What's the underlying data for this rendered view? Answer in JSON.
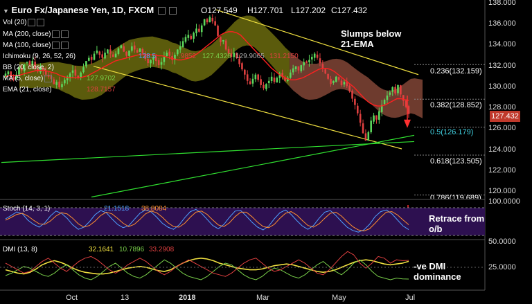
{
  "header": {
    "symbol_line": "Euro Fx/Japanese Yen, 1D, FXCM",
    "open": "O127.549",
    "high": "H127.701",
    "low": "L127.202",
    "close": "C127.432"
  },
  "indicators": [
    {
      "label": "Vol (20)",
      "values": []
    },
    {
      "label": "MA (200, close)",
      "values": []
    },
    {
      "label": "MA (100, close)",
      "values": []
    },
    {
      "label": "Ichimoku (9, 26, 52, 26)",
      "values": [
        "128.5",
        "129.9065",
        "131.2150",
        ".9852",
        "127.4326"
      ]
    },
    {
      "label": "BB (20, close, 2)",
      "values": []
    },
    {
      "label": "MA (5, close)",
      "values": [
        "127.9702"
      ]
    },
    {
      "label": "EMA (21, close)",
      "values": [
        "128.7157"
      ]
    }
  ],
  "annotations": {
    "main": "Slumps below\n21-EMA",
    "stoch": "Retrace from\no/b",
    "dmi": "-ve DMI\ndominance"
  },
  "stoch_panel": {
    "label": "Stoch (14, 3, 1)",
    "k": "21.1518",
    "d": "38.8084"
  },
  "dmi_panel": {
    "label": "DMI (13, 8)",
    "adx": "32.1641",
    "plus_di": "10.7896",
    "minus_di": "33.2908"
  },
  "current_price_tag": "127.432",
  "colors": {
    "background": "#000000",
    "candle_up": "#5cd65c",
    "candle_down": "#e04040",
    "ema21": "#ff2020",
    "cloud_bull": "#7a7a10",
    "cloud_bear": "#8a4a3a",
    "trend_yellow": "#f0e040",
    "trend_green": "#30e030",
    "stoch_bg": "#2d1050",
    "fib_text": "#ffffff",
    "fib_highlight": "#40d0e0"
  },
  "chart_data": [
    {
      "type": "candlestick",
      "title": "Euro Fx/Japanese Yen, 1D, FXCM",
      "x_ticks": [
        "Oct",
        "13",
        "2018",
        "Mar",
        "May",
        "Jul"
      ],
      "y_ticks": [
        120,
        122,
        124,
        126,
        128,
        130,
        132,
        134,
        136,
        138
      ],
      "ylim": [
        119.4,
        138.2
      ],
      "close_series": [
        131.3,
        131.5,
        131.0,
        130.7,
        131.2,
        131.9,
        131.6,
        132.2,
        132.4,
        132.1,
        132.5,
        131.8,
        131.5,
        131.9,
        131.6,
        131.2,
        131.0,
        130.8,
        130.3,
        130.5,
        130.0,
        130.3,
        130.7,
        131.0,
        131.3,
        131.6,
        131.1,
        130.9,
        131.4,
        131.9,
        132.5,
        132.8,
        132.6,
        133.2,
        133.5,
        133.1,
        132.8,
        133.3,
        133.6,
        133.2,
        132.9,
        133.2,
        133.7,
        134.0,
        133.4,
        133.0,
        133.5,
        133.9,
        133.6,
        133.3,
        133.7,
        133.2,
        132.7,
        132.3,
        132.6,
        132.9,
        132.5,
        132.1,
        132.4,
        132.9,
        133.3,
        133.0,
        132.6,
        133.1,
        133.6,
        133.9,
        134.4,
        134.8,
        135.0,
        134.6,
        135.2,
        135.6,
        135.3,
        135.9,
        136.5,
        136.2,
        136.7,
        136.3,
        135.9,
        134.9,
        134.3,
        134.5,
        133.6,
        133.2,
        132.9,
        133.3,
        132.8,
        132.2,
        131.7,
        131.2,
        130.6,
        130.3,
        130.8,
        131.2,
        130.7,
        130.2,
        129.9,
        130.3,
        130.6,
        131.0,
        130.5,
        130.9,
        131.3,
        131.0,
        130.6,
        130.9,
        131.4,
        131.8,
        132.0,
        131.6,
        132.1,
        132.4,
        132.3,
        132.6,
        132.9,
        133.2,
        132.8,
        132.3,
        131.8,
        131.3,
        130.8,
        130.3,
        130.6,
        131.0,
        130.7,
        130.2,
        130.5,
        130.1,
        129.6,
        128.9,
        128.3,
        127.5,
        126.6,
        125.6,
        124.9,
        125.7,
        126.8,
        127.3,
        126.9,
        127.7,
        128.3,
        128.8,
        129.2,
        129.5,
        130.0,
        129.4,
        130.2,
        129.3,
        128.7,
        128.1,
        127.432
      ],
      "ema21": [
        131.0,
        131.1,
        131.1,
        131.1,
        131.2,
        131.3,
        131.4,
        131.5,
        131.6,
        131.6,
        131.6,
        131.5,
        131.4,
        131.3,
        131.1,
        131.0,
        130.9,
        130.9,
        130.9,
        130.9,
        131.0,
        131.1,
        131.3,
        131.5,
        131.7,
        131.9,
        132.1,
        132.3,
        132.5,
        132.6,
        132.7,
        132.8,
        132.9,
        133.0,
        133.1,
        133.1,
        133.1,
        133.1,
        133.1,
        133.0,
        133.0,
        132.9,
        132.8,
        132.7,
        132.6,
        132.6,
        132.7,
        132.8,
        133.0,
        133.2,
        133.5,
        133.8,
        134.1,
        134.4,
        134.7,
        135.0,
        135.2,
        135.3,
        135.3,
        135.2,
        135.0,
        134.6,
        134.2,
        133.8,
        133.4,
        133.0,
        132.6,
        132.2,
        131.8,
        131.5,
        131.2,
        131.0,
        130.8,
        130.7,
        130.7,
        130.8,
        130.9,
        131.1,
        131.3,
        131.5,
        131.7,
        131.8,
        131.8,
        131.7,
        131.5,
        131.2,
        130.9,
        130.6,
        130.3,
        130.0,
        129.6,
        129.2,
        128.8,
        128.5,
        128.3,
        128.2,
        128.2,
        128.3,
        128.5,
        128.7,
        128.9,
        128.9,
        128.8,
        128.72
      ],
      "fib_levels": [
        {
          "label": "0.236(132.159)",
          "value": 132.159
        },
        {
          "label": "0.382(128.852)",
          "value": 128.852
        },
        {
          "label": "0.5(126.179)",
          "value": 126.179
        },
        {
          "label": "0.618(123.505)",
          "value": 123.505
        },
        {
          "label": "0.786(119.689)",
          "value": 119.689
        }
      ]
    },
    {
      "type": "line",
      "title": "Stoch (14, 3, 1)",
      "ylim": [
        0,
        100
      ],
      "y_ticks": [
        100.0
      ],
      "series": [
        {
          "name": "%K",
          "values": [
            60,
            72,
            85,
            78,
            55,
            40,
            30,
            45,
            70,
            88,
            80,
            62,
            38,
            22,
            30,
            50,
            75,
            90,
            82,
            60,
            40,
            28,
            35,
            58,
            80,
            92,
            85,
            66,
            44,
            30,
            22,
            38,
            64,
            86,
            94,
            80,
            58,
            36,
            24,
            40,
            66,
            88,
            90,
            70,
            48,
            30,
            20,
            34,
            60,
            82,
            92,
            76,
            54,
            34,
            22,
            36,
            62,
            84,
            90,
            72,
            50,
            30,
            18,
            12,
            20,
            40,
            68,
            86,
            92,
            78,
            56,
            34,
            21
          ]
        },
        {
          "name": "%D",
          "values": [
            55,
            65,
            76,
            80,
            70,
            55,
            42,
            40,
            52,
            70,
            82,
            78,
            62,
            42,
            30,
            36,
            52,
            72,
            84,
            78,
            62,
            44,
            32,
            40,
            58,
            78,
            88,
            82,
            66,
            46,
            32,
            30,
            44,
            66,
            84,
            88,
            76,
            56,
            38,
            32,
            46,
            68,
            84,
            84,
            68,
            48,
            32,
            28,
            40,
            62,
            80,
            86,
            74,
            54,
            36,
            30,
            42,
            62,
            80,
            84,
            70,
            50,
            32,
            20,
            16,
            24,
            44,
            66,
            84,
            86,
            74,
            56,
            38.8
          ]
        }
      ]
    },
    {
      "type": "line",
      "title": "DMI (13, 8)",
      "ylim": [
        0,
        55
      ],
      "y_ticks": [
        50.0,
        25.0
      ],
      "series": [
        {
          "name": "ADX",
          "values": [
            22,
            20,
            18,
            17,
            19,
            23,
            28,
            31,
            33,
            31,
            28,
            24,
            21,
            19,
            18,
            17,
            17,
            18,
            20,
            22,
            24,
            25,
            26,
            25,
            23,
            21,
            20,
            22,
            26,
            30,
            33,
            35,
            36,
            35,
            33,
            30,
            28,
            26,
            24,
            23,
            22,
            22,
            23,
            25,
            27,
            28,
            29,
            28,
            26,
            24,
            22,
            20,
            19,
            20,
            22,
            25,
            28,
            31,
            33,
            34,
            33,
            31,
            29,
            28,
            29,
            30,
            32.16
          ]
        },
        {
          "name": "+DI",
          "values": [
            15,
            18,
            22,
            26,
            24,
            20,
            16,
            14,
            18,
            24,
            28,
            22,
            16,
            12,
            10,
            14,
            20,
            26,
            30,
            24,
            18,
            14,
            12,
            16,
            22,
            28,
            34,
            30,
            24,
            18,
            14,
            12,
            10,
            14,
            20,
            26,
            30,
            28,
            22,
            16,
            12,
            10,
            14,
            20,
            24,
            22,
            18,
            14,
            12,
            16,
            22,
            28,
            32,
            26,
            20,
            16,
            22,
            30,
            34,
            28,
            20,
            14,
            12,
            10,
            12,
            11,
            10.79
          ]
        },
        {
          "name": "-DI",
          "values": [
            30,
            26,
            22,
            18,
            20,
            26,
            32,
            36,
            30,
            24,
            20,
            26,
            32,
            36,
            38,
            34,
            28,
            22,
            18,
            22,
            28,
            32,
            36,
            32,
            26,
            20,
            16,
            20,
            26,
            30,
            34,
            30,
            26,
            22,
            18,
            16,
            14,
            18,
            24,
            30,
            34,
            36,
            30,
            24,
            20,
            22,
            26,
            30,
            34,
            30,
            24,
            18,
            16,
            22,
            30,
            38,
            44,
            40,
            30,
            24,
            30,
            38,
            36,
            30,
            34,
            33,
            33.29
          ]
        }
      ]
    }
  ]
}
